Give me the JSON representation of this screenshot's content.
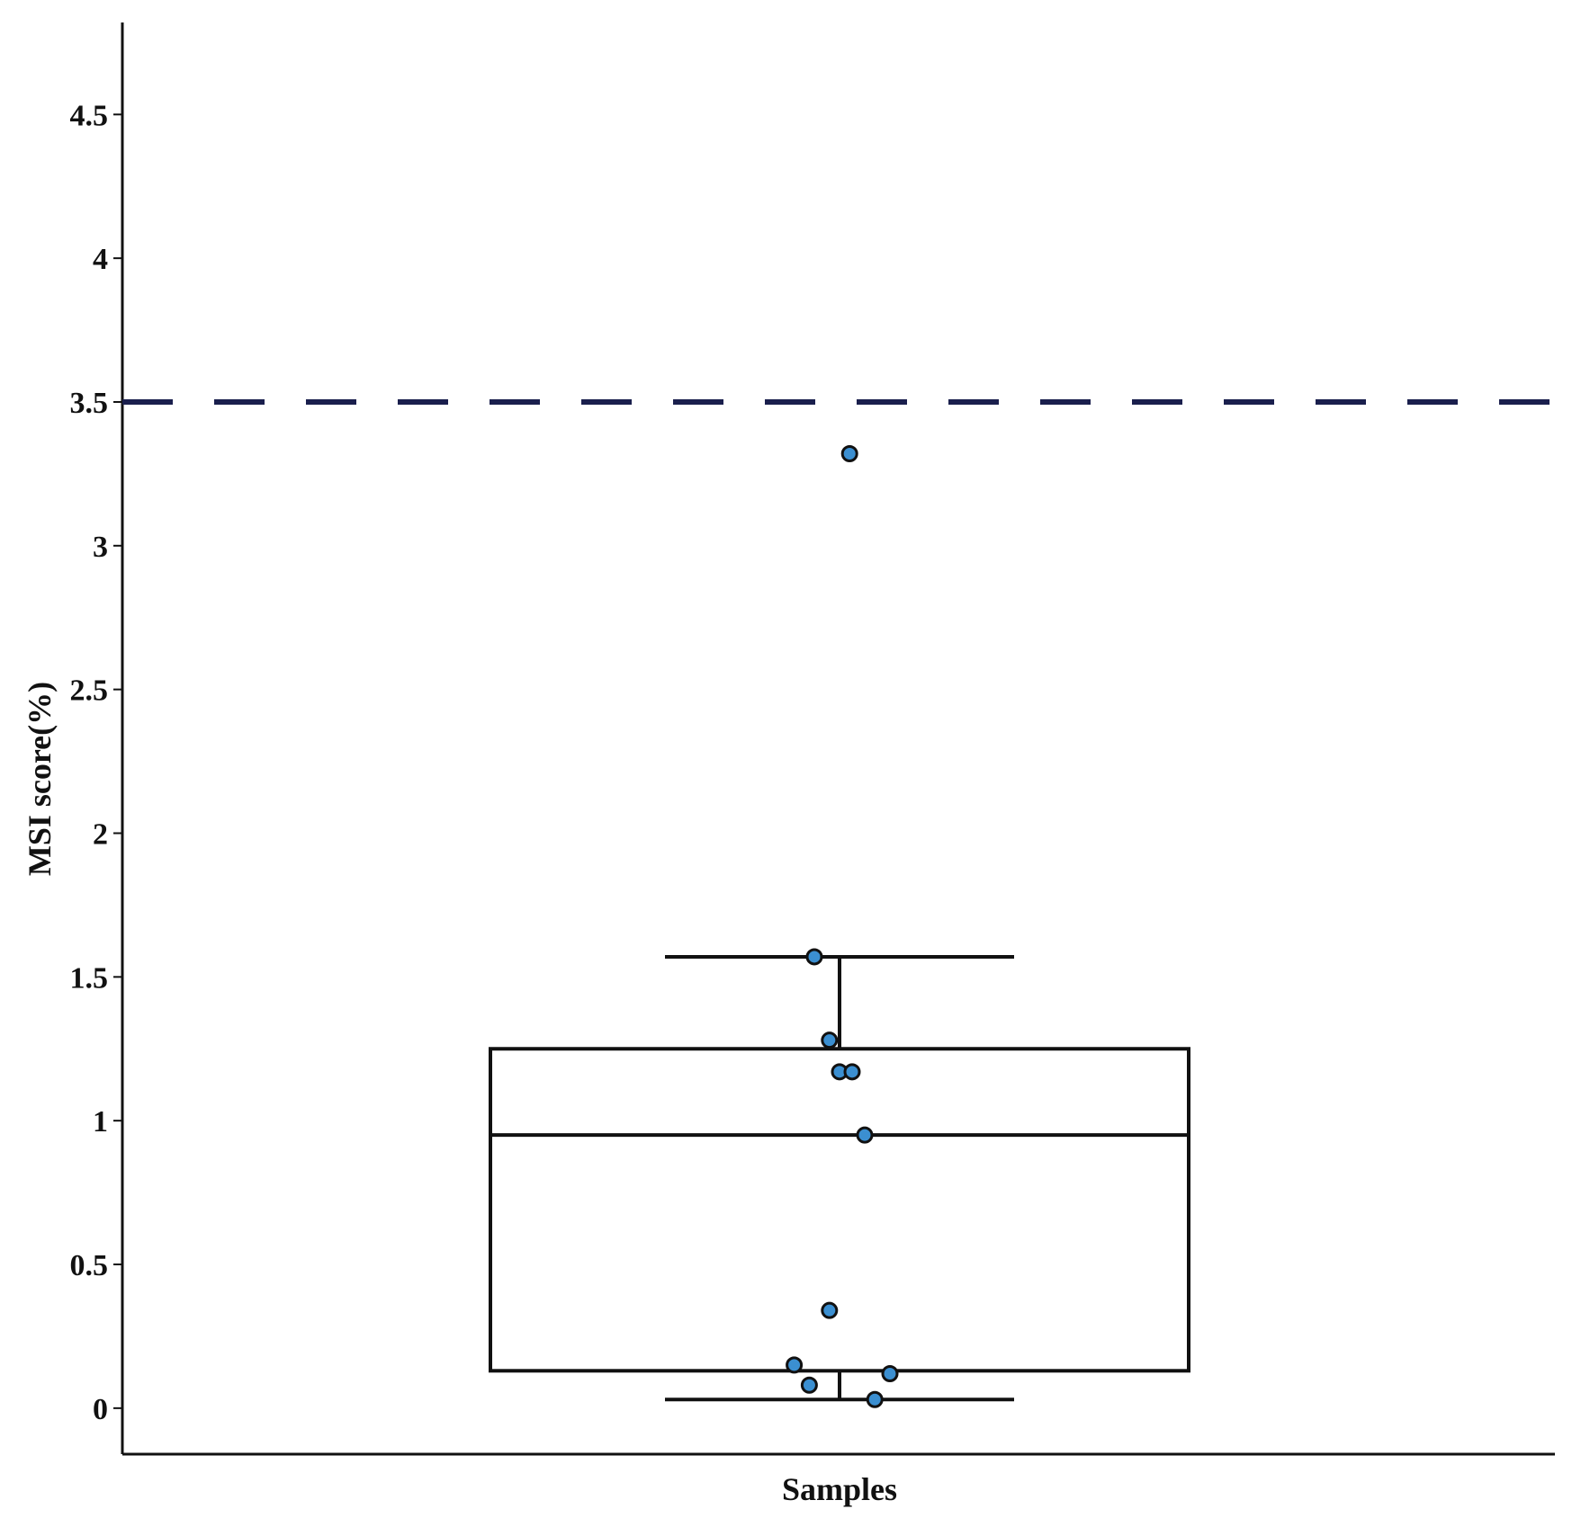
{
  "chart_data": {
    "type": "box",
    "title": "",
    "xlabel": "Samples",
    "ylabel": "MSI score(%)",
    "ylim": [
      -0.16,
      4.82
    ],
    "yticks": [
      0,
      0.5,
      1,
      1.5,
      2,
      2.5,
      3,
      3.5,
      4,
      4.5
    ],
    "ytick_labels": [
      "0",
      "0.5",
      "1",
      "1.5",
      "2",
      "2.5",
      "3",
      "3.5",
      "4",
      "4.5"
    ],
    "threshold": {
      "value": 3.5,
      "style": "dashed",
      "color": "#1a1f4d"
    },
    "box": {
      "q1": 0.13,
      "median": 0.95,
      "q3": 1.25,
      "whisker_low": 0.03,
      "whisker_high": 1.57
    },
    "points": [
      {
        "x": -0.09,
        "y": 0.15
      },
      {
        "x": -0.06,
        "y": 0.08
      },
      {
        "x": -0.05,
        "y": 1.57
      },
      {
        "x": -0.02,
        "y": 0.34
      },
      {
        "x": -0.02,
        "y": 1.28
      },
      {
        "x": 0.0,
        "y": 1.17
      },
      {
        "x": 0.02,
        "y": 3.32
      },
      {
        "x": 0.025,
        "y": 1.17
      },
      {
        "x": 0.05,
        "y": 0.95
      },
      {
        "x": 0.07,
        "y": 0.03
      },
      {
        "x": 0.1,
        "y": 0.12
      }
    ],
    "point_color": "#3b8fd1",
    "grid": false,
    "legend": "none"
  }
}
